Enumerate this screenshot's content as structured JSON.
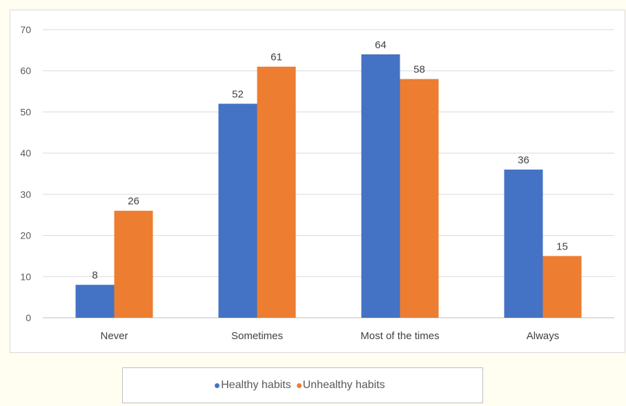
{
  "chart_data": {
    "type": "bar",
    "categories": [
      "Never",
      "Sometimes",
      "Most of the times",
      "Always"
    ],
    "series": [
      {
        "name": "Healthy habits",
        "color": "#4472c4",
        "values": [
          8,
          52,
          64,
          36
        ]
      },
      {
        "name": "Unhealthy habits",
        "color": "#ed7d31",
        "values": [
          26,
          61,
          58,
          15
        ]
      }
    ],
    "title": "",
    "xlabel": "",
    "ylabel": "",
    "ylim": [
      0,
      70
    ],
    "yticks": [
      0,
      10,
      20,
      30,
      40,
      50,
      60,
      70
    ],
    "grid": true,
    "data_labels": true,
    "legend_position": "bottom"
  }
}
